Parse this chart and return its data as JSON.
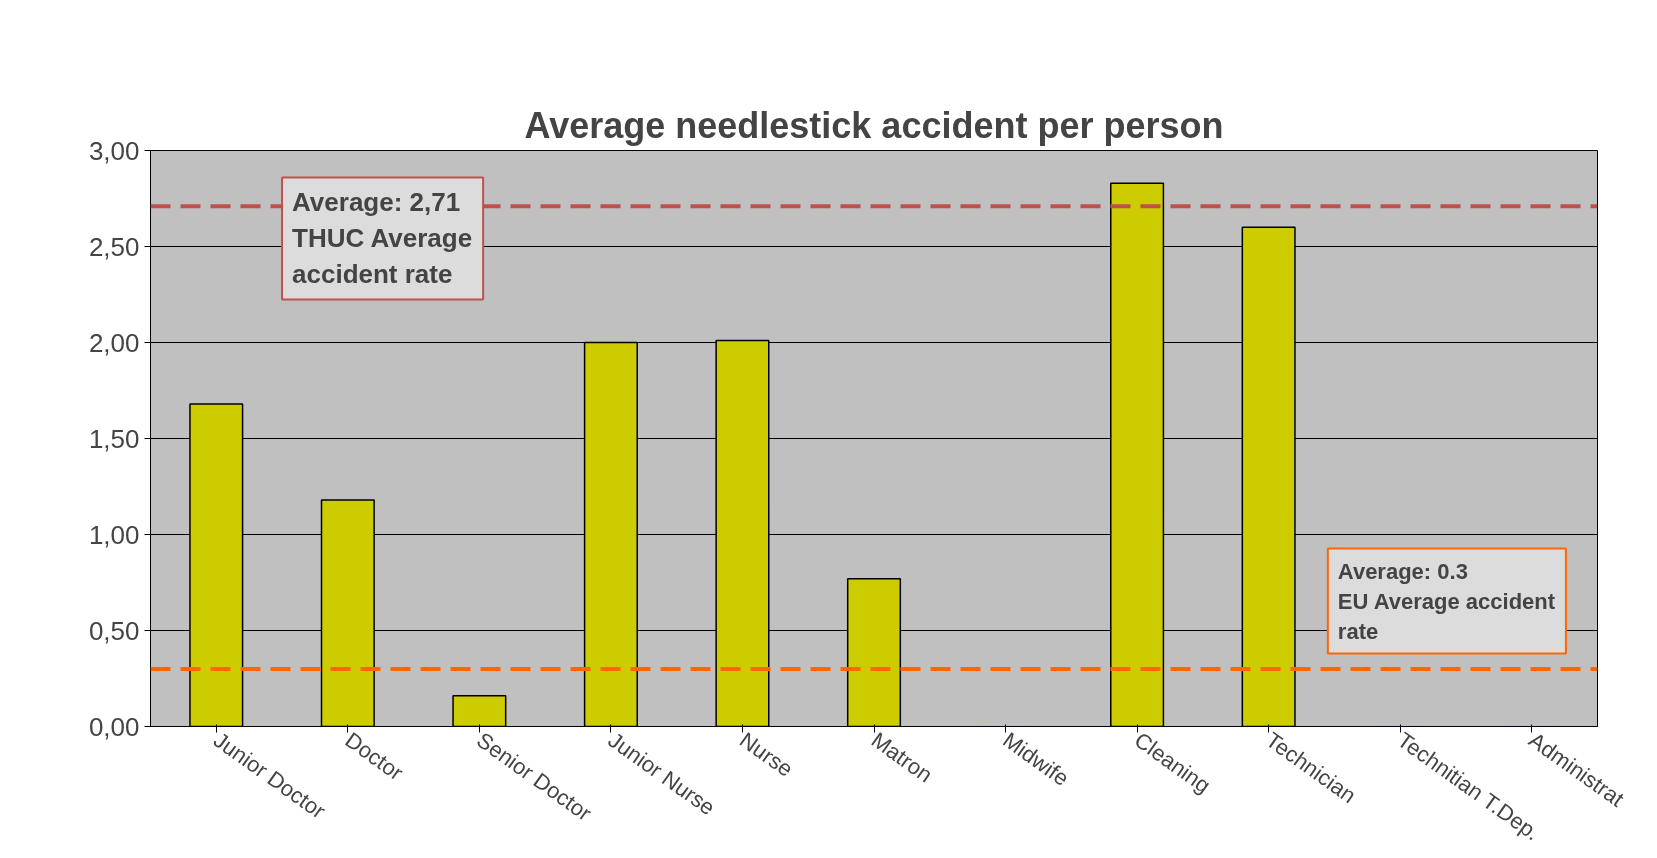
{
  "chart_data": {
    "type": "bar",
    "title": "Average needlestick accident per person",
    "categories": [
      "Junior Doctor",
      "Doctor",
      "Senior Doctor",
      "Junior Nurse",
      "Nurse",
      "Matron",
      "Midwife",
      "Cleaning",
      "Technician",
      "Technitian T.Dep.",
      "Administrat"
    ],
    "values": [
      1.68,
      1.18,
      0.16,
      2.0,
      2.01,
      0.77,
      0,
      2.83,
      2.6,
      0,
      0
    ],
    "color": "#cccc00",
    "ylim": [
      0,
      3
    ],
    "yticks": [
      {
        "value": 0,
        "label": "0,00"
      },
      {
        "value": 0.5,
        "label": "0,50"
      },
      {
        "value": 1,
        "label": "1,00"
      },
      {
        "value": 1.5,
        "label": "1,50"
      },
      {
        "value": 2,
        "label": "2,00"
      },
      {
        "value": 2.5,
        "label": "2,50"
      },
      {
        "value": 3,
        "label": "3,00"
      }
    ],
    "grid": "y",
    "ref_lines": [
      {
        "axis": "y",
        "value": 2.71,
        "label": "Average: 2,71\nTHUC Average\naccident rate",
        "color": "#c0504d",
        "line_style": "dashed"
      },
      {
        "axis": "y",
        "value": 0.3,
        "label": "Average: 0.3\nEU Average accident\nrate",
        "color": "#ff6600",
        "line_style": "dashed"
      }
    ]
  }
}
